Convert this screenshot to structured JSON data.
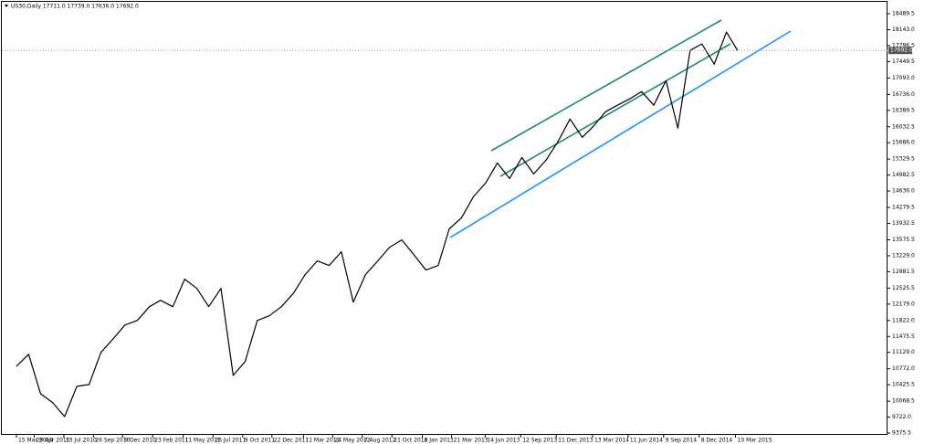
{
  "chart_data": {
    "type": "line",
    "title": "US30,Daily  17711.0 17739.0 17636.0 17692.0",
    "color": "#000000",
    "x": [
      "2010-03-15",
      "2010-04-15",
      "2010-05-15",
      "2010-06-15",
      "2010-07-15",
      "2010-08-15",
      "2010-09-15",
      "2010-10-15",
      "2010-11-15",
      "2010-12-15",
      "2011-01-15",
      "2011-02-15",
      "2011-03-15",
      "2011-04-15",
      "2011-05-15",
      "2011-06-15",
      "2011-07-15",
      "2011-08-15",
      "2011-09-15",
      "2011-10-15",
      "2011-11-15",
      "2011-12-15",
      "2012-01-15",
      "2012-02-15",
      "2012-03-15",
      "2012-04-15",
      "2012-05-15",
      "2012-06-15",
      "2012-07-15",
      "2012-08-15",
      "2012-09-15",
      "2012-10-15",
      "2012-11-15",
      "2012-12-15",
      "2013-01-15",
      "2013-02-15",
      "2013-03-15",
      "2013-04-15",
      "2013-05-15",
      "2013-06-15",
      "2013-07-15",
      "2013-08-15",
      "2013-09-15",
      "2013-10-15",
      "2013-11-15",
      "2013-12-15",
      "2014-01-15",
      "2014-02-15",
      "2014-03-15",
      "2014-04-15",
      "2014-05-15",
      "2014-06-15",
      "2014-07-15",
      "2014-08-15",
      "2014-09-15",
      "2014-10-15",
      "2014-11-15",
      "2014-12-15",
      "2015-01-15",
      "2015-02-15",
      "2015-03-15"
    ],
    "values": [
      10828,
      11087,
      10231,
      10032,
      9734,
      10390,
      10430,
      11127,
      11425,
      11724,
      11823,
      12122,
      12261,
      12122,
      12719,
      12520,
      12122,
      12520,
      10629,
      10927,
      11823,
      11923,
      12122,
      12420,
      12818,
      13117,
      13017,
      13316,
      12221,
      12818,
      13117,
      13415,
      13574,
      13256,
      12918,
      13017,
      13813,
      14052,
      14510,
      14808,
      15246,
      14908,
      15365,
      15007,
      15306,
      15704,
      16201,
      15803,
      16042,
      16360,
      16500,
      16639,
      16798,
      16500,
      17037,
      16002,
      17694,
      17833,
      17395,
      18092,
      17692
    ],
    "last_price": {
      "value": 17692,
      "label": "17692.0"
    },
    "xlim": [
      "2010-02-06",
      "2016-03-29"
    ],
    "xticks": [
      {
        "value": "2010-03-15",
        "label": "15 Mar 2010"
      },
      {
        "value": "2010-04-29",
        "label": "29 Apr 2010"
      },
      {
        "value": "2010-07-13",
        "label": "13 Jul 2010"
      },
      {
        "value": "2010-09-26",
        "label": "26 Sep 2010"
      },
      {
        "value": "2010-12-09",
        "label": "9 Dec 2010"
      },
      {
        "value": "2011-02-23",
        "label": "23 Feb 2011"
      },
      {
        "value": "2011-05-11",
        "label": "11 May 2011"
      },
      {
        "value": "2011-07-26",
        "label": "26 Jul 2011"
      },
      {
        "value": "2011-10-09",
        "label": "9 Oct 2011"
      },
      {
        "value": "2011-12-22",
        "label": "22 Dec 2011"
      },
      {
        "value": "2012-03-11",
        "label": "11 Mar 2012"
      },
      {
        "value": "2012-05-24",
        "label": "24 May 2012"
      },
      {
        "value": "2012-08-07",
        "label": "7 Aug 2012"
      },
      {
        "value": "2012-10-21",
        "label": "21 Oct 2012"
      },
      {
        "value": "2013-01-06",
        "label": "6 Jan 2013"
      },
      {
        "value": "2013-03-21",
        "label": "21 Mar 2013"
      },
      {
        "value": "2013-06-14",
        "label": "14 Jun 2013"
      },
      {
        "value": "2013-09-12",
        "label": "12 Sep 2013"
      },
      {
        "value": "2013-12-11",
        "label": "11 Dec 2013"
      },
      {
        "value": "2014-03-13",
        "label": "13 Mar 2014"
      },
      {
        "value": "2014-06-11",
        "label": "11 Jun 2014"
      },
      {
        "value": "2014-09-09",
        "label": "9 Sep 2014"
      },
      {
        "value": "2014-12-08",
        "label": "8 Dec 2014"
      },
      {
        "value": "2015-03-10",
        "label": "10 Mar 2015"
      }
    ],
    "ylim": [
      9336,
      18788
    ],
    "yticks": [
      18489.5,
      {
        "value": 18143,
        "label": "18143.0"
      },
      17796.5,
      17449.5,
      {
        "value": 17093,
        "label": "17093.0"
      },
      {
        "value": 16736,
        "label": "16736.0"
      },
      16389.5,
      16032.5,
      {
        "value": 15686,
        "label": "15686.0"
      },
      15329.5,
      14982.5,
      {
        "value": 14636,
        "label": "14636.0"
      },
      14279.5,
      13932.5,
      13575.5,
      {
        "value": 13229,
        "label": "13229.0"
      },
      12881.5,
      12525.5,
      {
        "value": 12179,
        "label": "12179.0"
      },
      {
        "value": 11822,
        "label": "11822.0"
      },
      11475.5,
      {
        "value": 11129,
        "label": "11129.0"
      },
      {
        "value": 10772,
        "label": "10772.0"
      },
      10425.5,
      10068.5,
      {
        "value": 9722,
        "label": "9722.0"
      },
      9375.5
    ]
  }
}
